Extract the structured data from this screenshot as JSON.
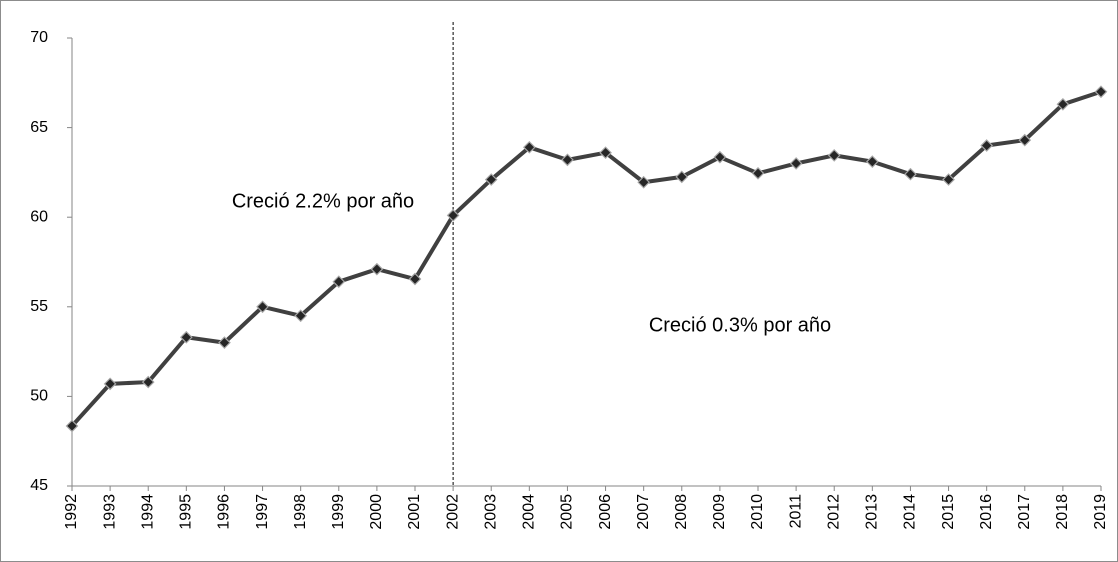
{
  "chart_data": {
    "type": "line",
    "categories": [
      "1992",
      "1993",
      "1994",
      "1995",
      "1996",
      "1997",
      "1998",
      "1999",
      "2000",
      "2001",
      "2002",
      "2003",
      "2004",
      "2005",
      "2006",
      "2007",
      "2008",
      "2009",
      "2010",
      "2011",
      "2012",
      "2013",
      "2014",
      "2015",
      "2016",
      "2017",
      "2018",
      "2019"
    ],
    "values": [
      48.35,
      50.7,
      50.8,
      53.3,
      53.0,
      55.0,
      54.5,
      56.4,
      57.1,
      56.55,
      60.1,
      62.1,
      63.9,
      63.2,
      63.6,
      61.95,
      62.25,
      63.35,
      62.45,
      63.0,
      63.45,
      63.1,
      62.4,
      62.1,
      64.0,
      64.3,
      66.3,
      67.0
    ],
    "color": "#404040",
    "ylim": [
      45,
      70
    ],
    "yticks": [
      45,
      50,
      55,
      60,
      65,
      70
    ],
    "annotations": [
      "Creció 2.2% por año",
      "Creció 0.3% por año"
    ],
    "reference_line": {
      "x": "2002",
      "style": "dashed"
    }
  }
}
